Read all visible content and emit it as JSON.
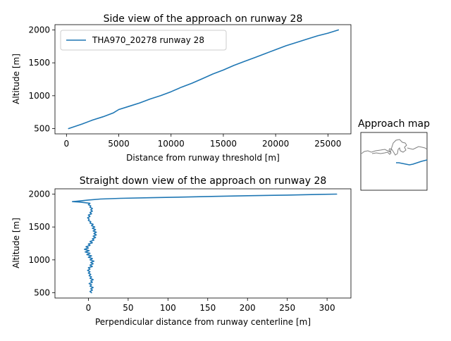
{
  "figure": {
    "colors": {
      "series": "#1f77b4",
      "coast": "#808080",
      "frame": "#000000"
    }
  },
  "chart_data": [
    {
      "type": "line",
      "title": "Side view of the approach on runway 28",
      "xlabel": "Distance from runway threshold [m]",
      "ylabel": "Altitude [m]",
      "xlim": [
        -1100,
        27200
      ],
      "ylim": [
        420,
        2080
      ],
      "xticks": [
        0,
        5000,
        10000,
        15000,
        20000,
        25000
      ],
      "xtick_labels": [
        "0",
        "5000",
        "10000",
        "15000",
        "20000",
        "25000"
      ],
      "yticks": [
        500,
        1000,
        1500,
        2000
      ],
      "ytick_labels": [
        "500",
        "1000",
        "1500",
        "2000"
      ],
      "legend": "upper-left",
      "series": [
        {
          "name": "THA970_20278 runway 28",
          "x": [
            200,
            1500,
            2500,
            3500,
            4500,
            5000,
            6000,
            7000,
            8000,
            9000,
            10000,
            11000,
            12000,
            13000,
            14000,
            15000,
            16000,
            17000,
            18000,
            19000,
            20000,
            21000,
            22000,
            23000,
            24000,
            25000,
            26000
          ],
          "y": [
            500,
            570,
            630,
            680,
            740,
            790,
            840,
            890,
            950,
            1000,
            1060,
            1130,
            1190,
            1260,
            1330,
            1390,
            1460,
            1520,
            1580,
            1640,
            1700,
            1760,
            1810,
            1860,
            1910,
            1950,
            2000
          ]
        }
      ]
    },
    {
      "type": "line",
      "title": "Straight down view of the approach on runway 28",
      "xlabel": "Perpendicular distance from runway centerline [m]",
      "ylabel": "Altitude [m]",
      "xlim": [
        -42,
        330
      ],
      "ylim": [
        420,
        2080
      ],
      "xticks": [
        0,
        50,
        100,
        150,
        200,
        250,
        300
      ],
      "xtick_labels": [
        "0",
        "50",
        "100",
        "150",
        "200",
        "250",
        "300"
      ],
      "yticks": [
        500,
        1000,
        1500,
        2000
      ],
      "ytick_labels": [
        "500",
        "1000",
        "1500",
        "2000"
      ],
      "series": [
        {
          "x": [
            4,
            2,
            5,
            3,
            6,
            2,
            4,
            1,
            5,
            3,
            6,
            2,
            4,
            1,
            3,
            0,
            2,
            -1,
            2,
            0,
            5,
            2,
            6,
            3,
            7,
            2,
            5,
            0,
            4,
            -2,
            2,
            -4,
            1,
            -5,
            0,
            -3,
            2,
            0,
            5,
            2,
            7,
            5,
            9,
            6,
            10,
            7,
            10,
            6,
            9,
            5,
            8,
            4,
            6,
            2,
            3,
            0,
            1,
            -1,
            2,
            0,
            4,
            2,
            5,
            3,
            5,
            2,
            3,
            0,
            2,
            -5,
            -12,
            -20,
            -15,
            0,
            15,
            40,
            80,
            120,
            160,
            200,
            250,
            290,
            312
          ],
          "y": [
            500,
            520,
            540,
            560,
            580,
            600,
            620,
            640,
            660,
            680,
            700,
            720,
            740,
            760,
            780,
            800,
            820,
            840,
            860,
            880,
            900,
            920,
            940,
            960,
            980,
            1000,
            1020,
            1040,
            1060,
            1080,
            1100,
            1120,
            1140,
            1160,
            1180,
            1200,
            1220,
            1240,
            1260,
            1280,
            1300,
            1320,
            1340,
            1360,
            1380,
            1400,
            1420,
            1440,
            1460,
            1480,
            1500,
            1520,
            1540,
            1560,
            1580,
            1600,
            1620,
            1640,
            1660,
            1680,
            1700,
            1720,
            1740,
            1760,
            1780,
            1800,
            1820,
            1840,
            1860,
            1870,
            1880,
            1885,
            1890,
            1910,
            1925,
            1935,
            1945,
            1955,
            1965,
            1975,
            1985,
            1995,
            2000
          ]
        }
      ]
    }
  ],
  "approach_map": {
    "title": "Approach map",
    "track_label": "approach track"
  }
}
